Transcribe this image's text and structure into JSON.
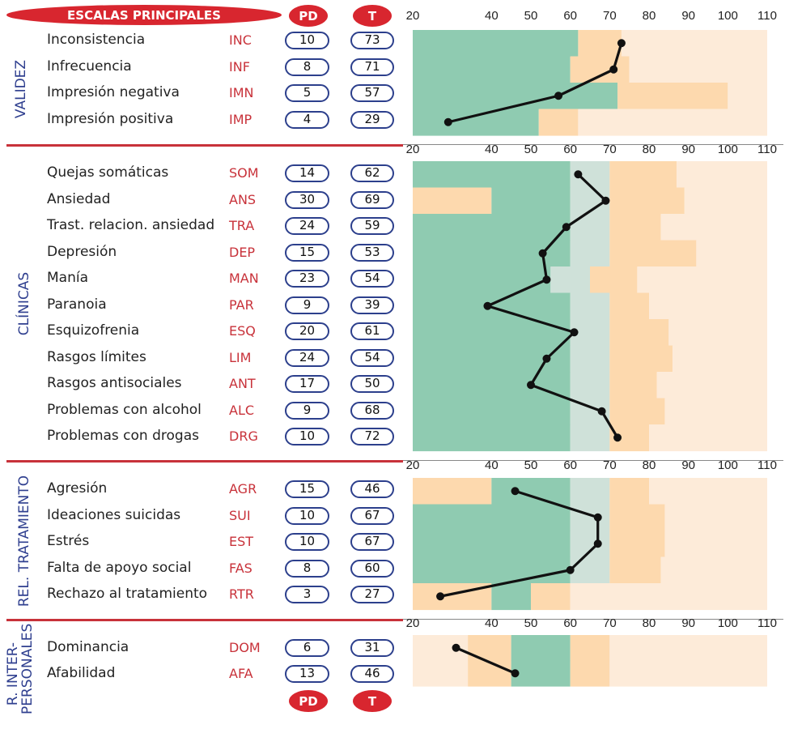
{
  "header": {
    "title": "ESCALAS PRINCIPALES",
    "pd": "PD",
    "t": "T"
  },
  "footer": {
    "pd": "PD",
    "t": "T"
  },
  "colors": {
    "green": "#8fcbb1",
    "paleGreen": "#cfe1d9",
    "orange": "#fdd9ae",
    "paleOrange": "#fdebd9",
    "accent": "#c8323a",
    "navy": "#2c3f8c"
  },
  "chart_data": {
    "type": "line",
    "x_axis": {
      "ticks": [
        20,
        40,
        50,
        60,
        70,
        80,
        90,
        100,
        110
      ],
      "xlim": [
        20,
        110
      ]
    },
    "sections": [
      {
        "label": "VALIDEZ",
        "scales": [
          {
            "name": "Inconsistencia",
            "abbr": "INC",
            "pd": 10,
            "t": 73
          },
          {
            "name": "Infrecuencia",
            "abbr": "INF",
            "pd": 8,
            "t": 71
          },
          {
            "name": "Impresión negativa",
            "abbr": "IMN",
            "pd": 5,
            "t": 57
          },
          {
            "name": "Impresión positiva",
            "abbr": "IMP",
            "pd": 4,
            "t": 29
          }
        ]
      },
      {
        "label": "CLÍNICAS",
        "scales": [
          {
            "name": "Quejas somáticas",
            "abbr": "SOM",
            "pd": 14,
            "t": 62
          },
          {
            "name": "Ansiedad",
            "abbr": "ANS",
            "pd": 30,
            "t": 69
          },
          {
            "name": "Trast. relacion. ansiedad",
            "abbr": "TRA",
            "pd": 24,
            "t": 59
          },
          {
            "name": "Depresión",
            "abbr": "DEP",
            "pd": 15,
            "t": 53
          },
          {
            "name": "Manía",
            "abbr": "MAN",
            "pd": 23,
            "t": 54
          },
          {
            "name": "Paranoia",
            "abbr": "PAR",
            "pd": 9,
            "t": 39
          },
          {
            "name": "Esquizofrenia",
            "abbr": "ESQ",
            "pd": 20,
            "t": 61
          },
          {
            "name": "Rasgos límites",
            "abbr": "LIM",
            "pd": 24,
            "t": 54
          },
          {
            "name": "Rasgos antisociales",
            "abbr": "ANT",
            "pd": 17,
            "t": 50
          },
          {
            "name": "Problemas con alcohol",
            "abbr": "ALC",
            "pd": 9,
            "t": 68
          },
          {
            "name": "Problemas con drogas",
            "abbr": "DRG",
            "pd": 10,
            "t": 72
          }
        ]
      },
      {
        "label": "REL. TRATAMIENTO",
        "scales": [
          {
            "name": "Agresión",
            "abbr": "AGR",
            "pd": 15,
            "t": 46
          },
          {
            "name": "Ideaciones suicidas",
            "abbr": "SUI",
            "pd": 10,
            "t": 67
          },
          {
            "name": "Estrés",
            "abbr": "EST",
            "pd": 10,
            "t": 67
          },
          {
            "name": "Falta de apoyo social",
            "abbr": "FAS",
            "pd": 8,
            "t": 60
          },
          {
            "name": "Rechazo al tratamiento",
            "abbr": "RTR",
            "pd": 3,
            "t": 27
          }
        ]
      },
      {
        "label": "R. INTER- PERSONALES",
        "scales": [
          {
            "name": "Dominancia",
            "abbr": "DOM",
            "pd": 6,
            "t": 31
          },
          {
            "name": "Afabilidad",
            "abbr": "AFA",
            "pd": 13,
            "t": 46
          }
        ]
      }
    ],
    "bands": [
      [
        [
          [
            20,
            62,
            "green"
          ],
          [
            62,
            73,
            "orange"
          ],
          [
            73,
            110,
            "paleOrange"
          ]
        ],
        [
          [
            20,
            60,
            "green"
          ],
          [
            60,
            75,
            "orange"
          ],
          [
            75,
            110,
            "paleOrange"
          ]
        ],
        [
          [
            20,
            72,
            "green"
          ],
          [
            72,
            100,
            "orange"
          ],
          [
            100,
            110,
            "paleOrange"
          ]
        ],
        [
          [
            20,
            52,
            "green"
          ],
          [
            52,
            62,
            "orange"
          ],
          [
            62,
            110,
            "paleOrange"
          ]
        ]
      ],
      [
        [
          [
            20,
            60,
            "green"
          ],
          [
            60,
            70,
            "paleGreen"
          ],
          [
            70,
            87,
            "orange"
          ],
          [
            87,
            110,
            "paleOrange"
          ]
        ],
        [
          [
            20,
            40,
            "orange"
          ],
          [
            40,
            60,
            "green"
          ],
          [
            60,
            70,
            "paleGreen"
          ],
          [
            70,
            89,
            "orange"
          ],
          [
            89,
            110,
            "paleOrange"
          ]
        ],
        [
          [
            20,
            60,
            "green"
          ],
          [
            60,
            70,
            "paleGreen"
          ],
          [
            70,
            83,
            "orange"
          ],
          [
            83,
            110,
            "paleOrange"
          ]
        ],
        [
          [
            20,
            60,
            "green"
          ],
          [
            60,
            70,
            "paleGreen"
          ],
          [
            70,
            92,
            "orange"
          ],
          [
            92,
            110,
            "paleOrange"
          ]
        ],
        [
          [
            20,
            55,
            "green"
          ],
          [
            55,
            65,
            "paleGreen"
          ],
          [
            65,
            77,
            "orange"
          ],
          [
            77,
            110,
            "paleOrange"
          ]
        ],
        [
          [
            20,
            60,
            "green"
          ],
          [
            60,
            70,
            "paleGreen"
          ],
          [
            70,
            80,
            "orange"
          ],
          [
            80,
            110,
            "paleOrange"
          ]
        ],
        [
          [
            20,
            60,
            "green"
          ],
          [
            60,
            70,
            "paleGreen"
          ],
          [
            70,
            85,
            "orange"
          ],
          [
            85,
            110,
            "paleOrange"
          ]
        ],
        [
          [
            20,
            60,
            "green"
          ],
          [
            60,
            70,
            "paleGreen"
          ],
          [
            70,
            86,
            "orange"
          ],
          [
            86,
            110,
            "paleOrange"
          ]
        ],
        [
          [
            20,
            60,
            "green"
          ],
          [
            60,
            70,
            "paleGreen"
          ],
          [
            70,
            82,
            "orange"
          ],
          [
            82,
            110,
            "paleOrange"
          ]
        ],
        [
          [
            20,
            60,
            "green"
          ],
          [
            60,
            70,
            "paleGreen"
          ],
          [
            70,
            84,
            "orange"
          ],
          [
            84,
            110,
            "paleOrange"
          ]
        ],
        [
          [
            20,
            60,
            "green"
          ],
          [
            60,
            70,
            "paleGreen"
          ],
          [
            70,
            80,
            "orange"
          ],
          [
            80,
            110,
            "paleOrange"
          ]
        ]
      ],
      [
        [
          [
            20,
            40,
            "orange"
          ],
          [
            40,
            60,
            "green"
          ],
          [
            60,
            70,
            "paleGreen"
          ],
          [
            70,
            80,
            "orange"
          ],
          [
            80,
            110,
            "paleOrange"
          ]
        ],
        [
          [
            20,
            60,
            "green"
          ],
          [
            60,
            70,
            "paleGreen"
          ],
          [
            70,
            84,
            "orange"
          ],
          [
            84,
            110,
            "paleOrange"
          ]
        ],
        [
          [
            20,
            60,
            "green"
          ],
          [
            60,
            70,
            "paleGreen"
          ],
          [
            70,
            84,
            "orange"
          ],
          [
            84,
            110,
            "paleOrange"
          ]
        ],
        [
          [
            20,
            60,
            "green"
          ],
          [
            60,
            70,
            "paleGreen"
          ],
          [
            70,
            83,
            "orange"
          ],
          [
            83,
            110,
            "paleOrange"
          ]
        ],
        [
          [
            20,
            40,
            "orange"
          ],
          [
            40,
            50,
            "green"
          ],
          [
            50,
            60,
            "orange"
          ],
          [
            60,
            110,
            "paleOrange"
          ]
        ]
      ],
      [
        [
          [
            20,
            34,
            "paleOrange"
          ],
          [
            34,
            45,
            "orange"
          ],
          [
            45,
            60,
            "green"
          ],
          [
            60,
            70,
            "orange"
          ],
          [
            70,
            110,
            "paleOrange"
          ]
        ],
        [
          [
            20,
            34,
            "paleOrange"
          ],
          [
            34,
            45,
            "orange"
          ],
          [
            45,
            60,
            "green"
          ],
          [
            60,
            70,
            "orange"
          ],
          [
            70,
            110,
            "paleOrange"
          ]
        ]
      ]
    ]
  }
}
